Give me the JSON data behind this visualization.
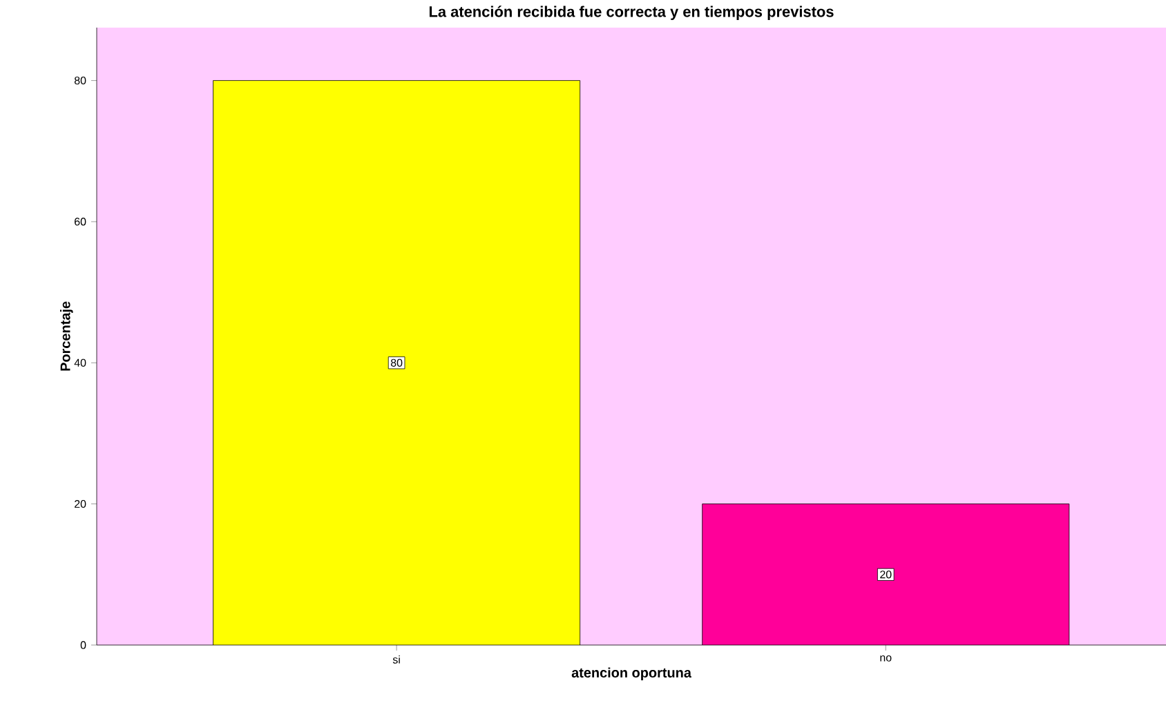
{
  "chart_data": {
    "type": "bar",
    "title": "La atención recibida fue correcta y en tiempos previstos",
    "xlabel": "atencion oportuna",
    "ylabel": "Porcentaje",
    "categories": [
      "si",
      "no"
    ],
    "values": [
      80,
      20
    ],
    "colors": [
      "#ffff00",
      "#ff0099"
    ],
    "ylim": [
      0,
      87.5
    ],
    "yticks": [
      0,
      20,
      40,
      60,
      80
    ],
    "grid": false,
    "data_labels": true
  }
}
